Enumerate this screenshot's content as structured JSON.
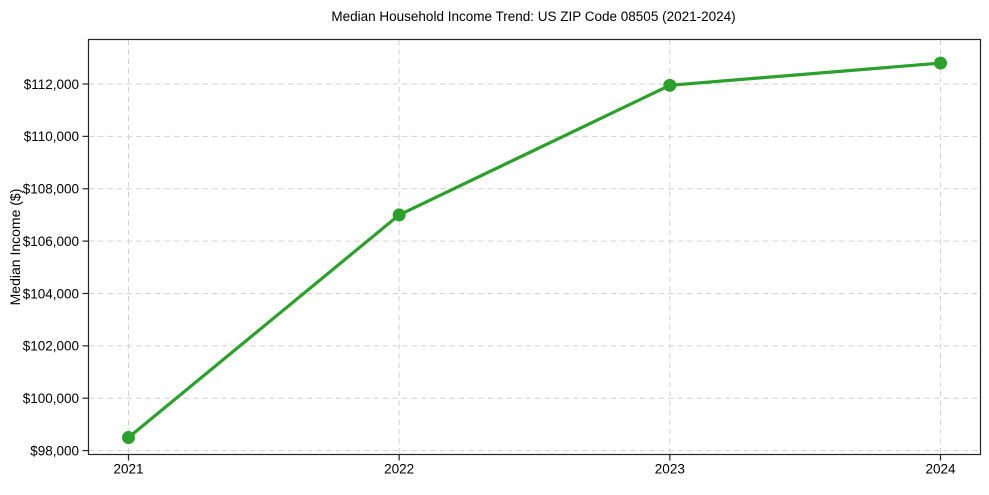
{
  "chart_data": {
    "type": "line",
    "title": "Median Household Income Trend: US ZIP Code 08505 (2021-2024)",
    "xlabel": "",
    "ylabel": "Median Income ($)",
    "x": [
      "2021",
      "2022",
      "2023",
      "2024"
    ],
    "series": [
      {
        "name": "Median household income",
        "values": [
          98500,
          107000,
          111950,
          112800
        ],
        "color": "#2ca02c",
        "marker": "circle",
        "line_style": "solid"
      }
    ],
    "yticks": [
      98000,
      100000,
      102000,
      104000,
      106000,
      108000,
      110000,
      112000
    ],
    "ytick_prefix": "$",
    "ylim": [
      97850,
      113700
    ],
    "grid": true,
    "grid_style": "dashed",
    "legend": false,
    "colors": {
      "line": "#2ca02c",
      "grid": "#d2d2d2",
      "axis": "#262626",
      "text": "#000000",
      "background": "#ffffff"
    }
  }
}
